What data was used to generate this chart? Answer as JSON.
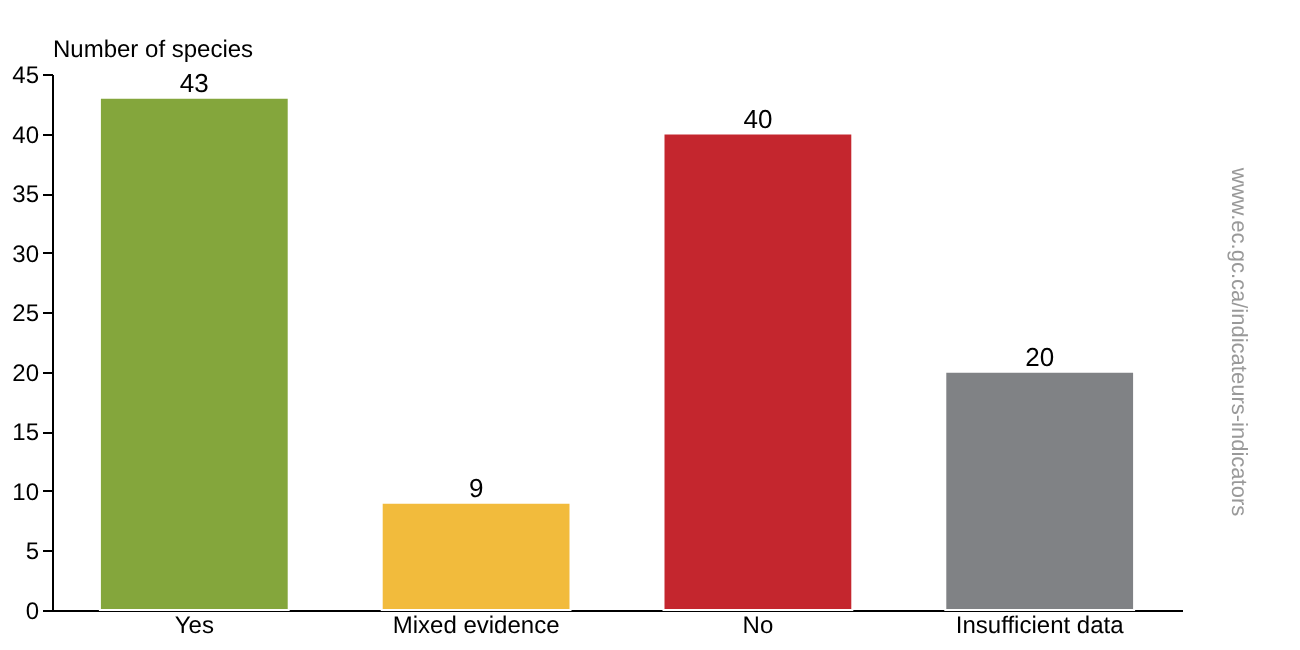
{
  "chart_data": {
    "type": "bar",
    "ylabel": "Number of species",
    "categories": [
      "Yes",
      "Mixed evidence",
      "No",
      "Insufficient data"
    ],
    "values": [
      43,
      9,
      40,
      20
    ],
    "colors": [
      "#84a63c",
      "#f2bb3c",
      "#c4262e",
      "#808285"
    ],
    "ylim": [
      0,
      45
    ],
    "yticks": [
      0,
      5,
      10,
      15,
      20,
      25,
      30,
      35,
      40,
      45
    ],
    "data_labels": true,
    "grid": false,
    "annotations": [
      "www.ec.gc.ca/indicateurs-indicators"
    ]
  }
}
